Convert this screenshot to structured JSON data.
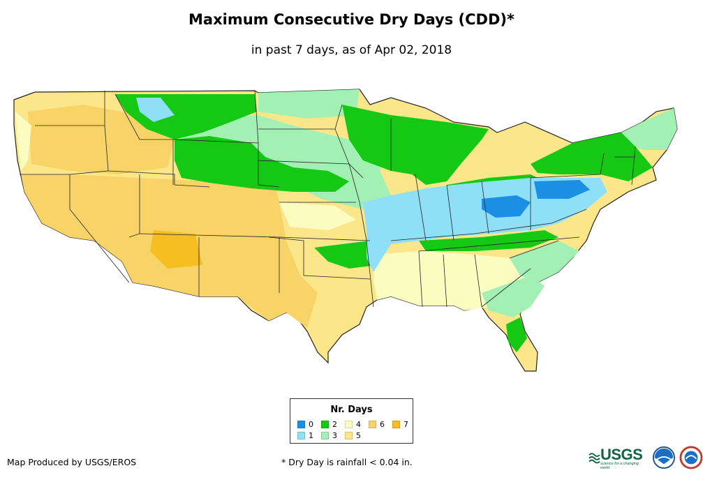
{
  "title": "Maximum Consecutive Dry Days (CDD)*",
  "subtitle": "in past 7 days, as of Apr 02, 2018",
  "legend": {
    "title": "Nr. Days",
    "items": [
      {
        "label": "0",
        "color": "#1a8fe3"
      },
      {
        "label": "1",
        "color": "#8fe0f7"
      },
      {
        "label": "2",
        "color": "#14c814"
      },
      {
        "label": "3",
        "color": "#a3f0b5"
      },
      {
        "label": "4",
        "color": "#fbfcc0"
      },
      {
        "label": "5",
        "color": "#fbe68a"
      },
      {
        "label": "6",
        "color": "#f8d368"
      },
      {
        "label": "7",
        "color": "#f6be20"
      }
    ]
  },
  "credit": "Map Produced by USGS/EROS",
  "footnote": "* Dry Day is rainfall < 0.04 in.",
  "logos": {
    "usgs": "USGS",
    "usgs_tagline": "science for a changing world"
  }
}
